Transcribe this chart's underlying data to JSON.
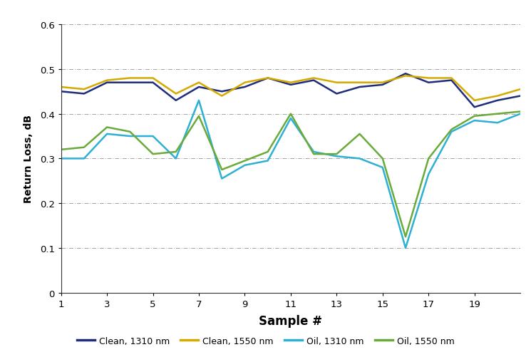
{
  "x": [
    1,
    2,
    3,
    4,
    5,
    6,
    7,
    8,
    9,
    10,
    11,
    12,
    13,
    14,
    15,
    16,
    17,
    18,
    19,
    20,
    21
  ],
  "clean_1310": [
    0.45,
    0.445,
    0.47,
    0.47,
    0.47,
    0.43,
    0.46,
    0.45,
    0.46,
    0.48,
    0.465,
    0.475,
    0.445,
    0.46,
    0.465,
    0.49,
    0.47,
    0.475,
    0.415,
    0.43,
    0.44
  ],
  "clean_1550": [
    0.46,
    0.455,
    0.475,
    0.48,
    0.48,
    0.445,
    0.47,
    0.44,
    0.47,
    0.48,
    0.47,
    0.48,
    0.47,
    0.47,
    0.47,
    0.485,
    0.48,
    0.48,
    0.43,
    0.44,
    0.455
  ],
  "oil_1310": [
    0.3,
    0.3,
    0.355,
    0.35,
    0.35,
    0.3,
    0.43,
    0.255,
    0.285,
    0.295,
    0.39,
    0.315,
    0.305,
    0.3,
    0.28,
    0.1,
    0.265,
    0.36,
    0.385,
    0.38,
    0.4
  ],
  "oil_1550": [
    0.32,
    0.325,
    0.37,
    0.36,
    0.31,
    0.315,
    0.395,
    0.275,
    0.295,
    0.315,
    0.4,
    0.31,
    0.31,
    0.355,
    0.3,
    0.125,
    0.3,
    0.365,
    0.395,
    0.4,
    0.405
  ],
  "clean_1310_color": "#1f2d7b",
  "clean_1550_color": "#d4aa00",
  "oil_1310_color": "#2eb0d4",
  "oil_1550_color": "#6aaa3a",
  "xlabel": "Sample #",
  "ylabel": "Return Loss, dB",
  "ylim": [
    0,
    0.6
  ],
  "xlim": [
    1,
    21
  ],
  "yticks": [
    0,
    0.1,
    0.2,
    0.3,
    0.4,
    0.5,
    0.6
  ],
  "xticks": [
    1,
    3,
    5,
    7,
    9,
    11,
    13,
    15,
    17,
    19
  ],
  "legend_labels": [
    "Clean, 1310 nm",
    "Clean, 1550 nm",
    "Oil, 1310 nm",
    "Oil, 1550 nm"
  ],
  "linewidth": 1.8,
  "background_color": "#ffffff",
  "grid_color": "#999999"
}
